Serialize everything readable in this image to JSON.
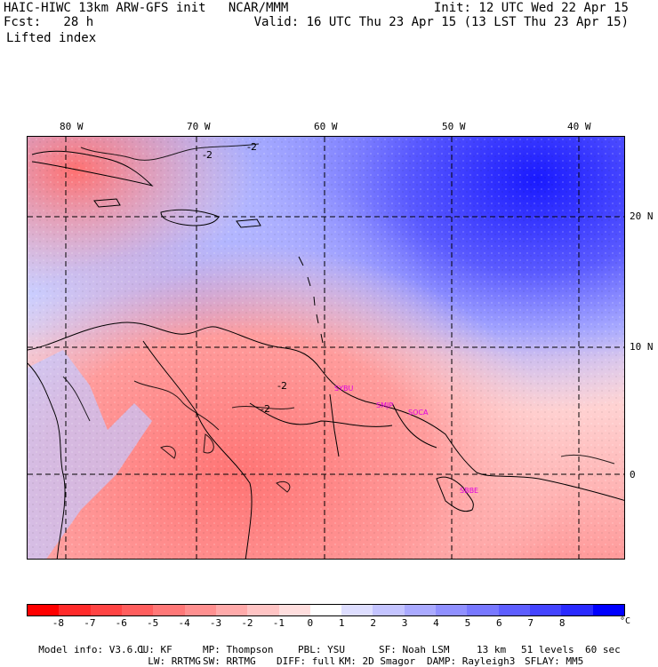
{
  "header": {
    "line1_left": "HAIC-HIWC 13km ARW-GFS init   NCAR/MMM",
    "line1_right": "Init: 12 UTC Wed 22 Apr 15",
    "line2_left": "Fcst:   28 h",
    "line2_right": "Valid: 16 UTC Thu 23 Apr 15 (13 LST Thu 23 Apr 15)",
    "field_name": "Lifted index"
  },
  "map": {
    "lon_labels": [
      "80 W",
      "70 W",
      "60 W",
      "50 W",
      "40 W"
    ],
    "lat_labels": [
      "20 N",
      "10 N",
      "0"
    ],
    "contour_labels": [
      "-2",
      "-2",
      "-2",
      "-2"
    ],
    "stations": [
      "SYBU",
      "SMJP",
      "SOCA",
      "SBBE"
    ]
  },
  "legend": {
    "colors": [
      "#ff0000",
      "#ff2a2a",
      "#ff4444",
      "#ff5e5e",
      "#ff7878",
      "#ff9090",
      "#ffaaaa",
      "#ffc4c4",
      "#ffdede",
      "#ffffff",
      "#dedeff",
      "#c4c4ff",
      "#aaaaff",
      "#9090ff",
      "#7878ff",
      "#5e5eff",
      "#4444ff",
      "#2a2aff",
      "#0000ff"
    ],
    "ticks": [
      "-8",
      "-7",
      "-6",
      "-5",
      "-4",
      "-3",
      "-2",
      "-1",
      "0",
      "1",
      "2",
      "3",
      "4",
      "5",
      "6",
      "7",
      "8"
    ],
    "unit": "°C"
  },
  "footer": {
    "line1": [
      {
        "label": "Model info: V3.6.1"
      },
      {
        "label": "CU: KF"
      },
      {
        "label": "MP: Thompson"
      },
      {
        "label": "PBL: YSU"
      },
      {
        "label": "SF: Noah LSM"
      },
      {
        "label": "13 km"
      },
      {
        "label": "51 levels"
      },
      {
        "label": "60 sec"
      }
    ],
    "line2": [
      {
        "label": "LW: RRTMG"
      },
      {
        "label": "SW: RRTMG"
      },
      {
        "label": "DIFF: full"
      },
      {
        "label": "KM: 2D Smagor"
      },
      {
        "label": "DAMP: Rayleigh3"
      },
      {
        "label": "SFLAY: MM5"
      }
    ]
  }
}
